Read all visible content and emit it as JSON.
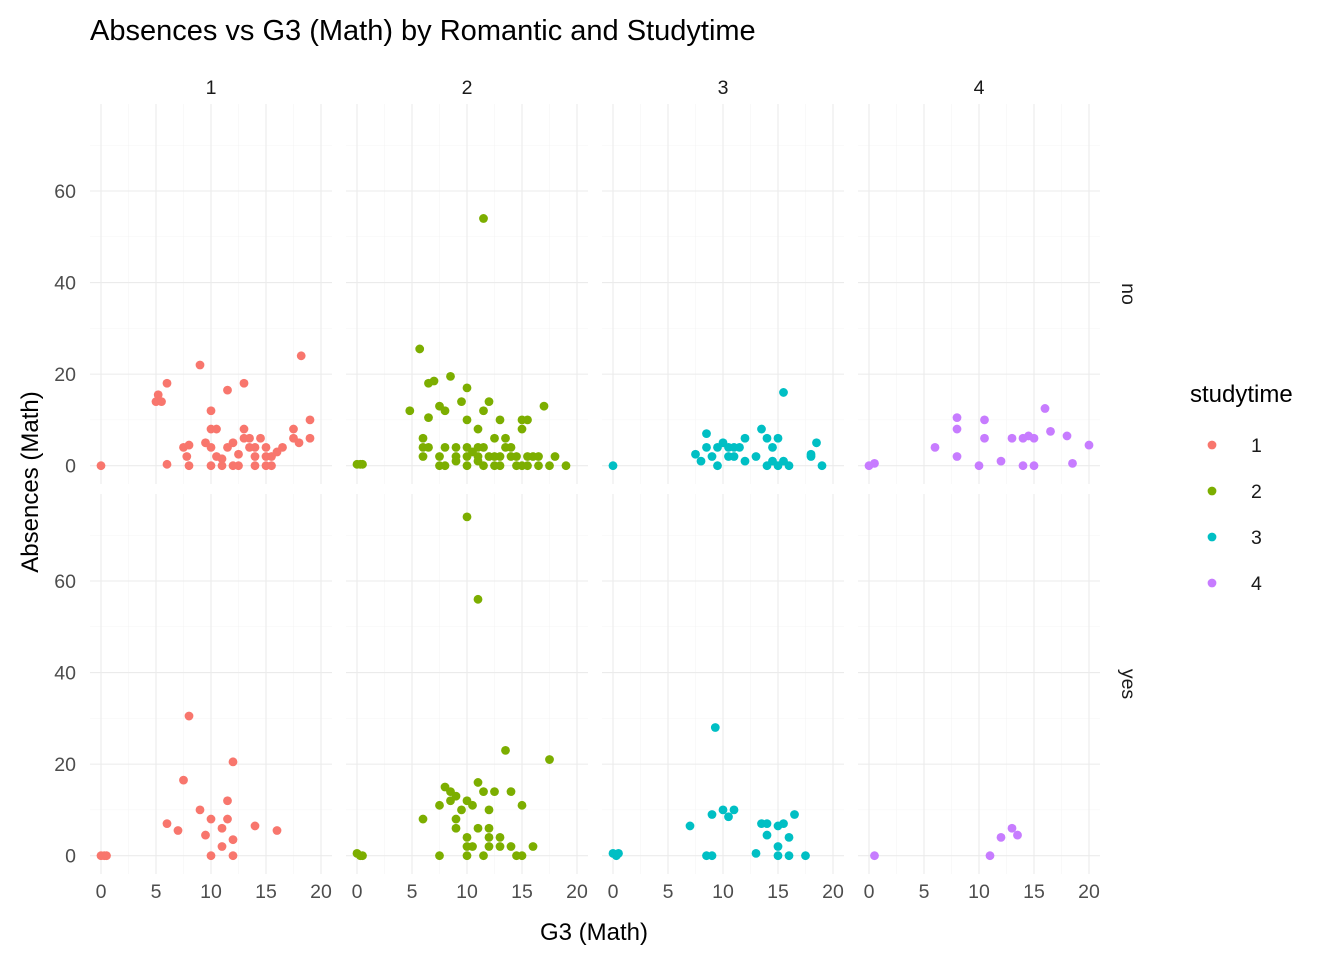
{
  "chart_data": {
    "type": "scatter",
    "title": "Absences vs G3 (Math) by Romantic and Studytime",
    "xlabel": "G3 (Math)",
    "ylabel": "Absences (Math)",
    "xlim": [
      -1,
      21
    ],
    "ylim": [
      -4,
      79
    ],
    "x_ticks": [
      0,
      5,
      10,
      15,
      20
    ],
    "y_ticks": [
      0,
      20,
      40,
      60
    ],
    "facet_cols": [
      "1",
      "2",
      "3",
      "4"
    ],
    "facet_rows": [
      "no",
      "yes"
    ],
    "grid": true,
    "legend": {
      "title": "studytime",
      "position": "right",
      "entries": [
        {
          "label": "1",
          "color": "#F8766D"
        },
        {
          "label": "2",
          "color": "#7CAE00"
        },
        {
          "label": "3",
          "color": "#00BFC4"
        },
        {
          "label": "4",
          "color": "#C77CFF"
        }
      ]
    },
    "panels": [
      {
        "row": "no",
        "col": "1",
        "studytime": "1",
        "points": [
          [
            0,
            0
          ],
          [
            5,
            14
          ],
          [
            5.2,
            15.5
          ],
          [
            5.5,
            14
          ],
          [
            6,
            0.3
          ],
          [
            6,
            18
          ],
          [
            7.5,
            4
          ],
          [
            7.8,
            2
          ],
          [
            8,
            0
          ],
          [
            8,
            4.5
          ],
          [
            9,
            22
          ],
          [
            9.5,
            5
          ],
          [
            10,
            0
          ],
          [
            10,
            4
          ],
          [
            10,
            8
          ],
          [
            10,
            12
          ],
          [
            10.5,
            2
          ],
          [
            10.5,
            8
          ],
          [
            11,
            0
          ],
          [
            11,
            1.5
          ],
          [
            11.5,
            4
          ],
          [
            11.5,
            16.5
          ],
          [
            12,
            0
          ],
          [
            12,
            5
          ],
          [
            12.5,
            0
          ],
          [
            12.5,
            2.5
          ],
          [
            13,
            6
          ],
          [
            13,
            8
          ],
          [
            13,
            18
          ],
          [
            13.5,
            4
          ],
          [
            13.5,
            6
          ],
          [
            14,
            0
          ],
          [
            14,
            2
          ],
          [
            14,
            4
          ],
          [
            14.5,
            6
          ],
          [
            15,
            0
          ],
          [
            15,
            2
          ],
          [
            15,
            4
          ],
          [
            15.5,
            0
          ],
          [
            15.5,
            2
          ],
          [
            16,
            3
          ],
          [
            16.5,
            4
          ],
          [
            17.5,
            6
          ],
          [
            17.5,
            8
          ],
          [
            18,
            5
          ],
          [
            18.2,
            24
          ],
          [
            19,
            6
          ],
          [
            19,
            10
          ]
        ]
      },
      {
        "row": "no",
        "col": "2",
        "studytime": "2",
        "points": [
          [
            0,
            0.3
          ],
          [
            0.3,
            0.3
          ],
          [
            0.5,
            0.3
          ],
          [
            4.8,
            12
          ],
          [
            5.7,
            25.5
          ],
          [
            6,
            2
          ],
          [
            6,
            4
          ],
          [
            6,
            6
          ],
          [
            6.5,
            4
          ],
          [
            6.5,
            10.5
          ],
          [
            6.5,
            18
          ],
          [
            7,
            18.5
          ],
          [
            7.5,
            0
          ],
          [
            7.5,
            2
          ],
          [
            7.5,
            13
          ],
          [
            8,
            0
          ],
          [
            8,
            4
          ],
          [
            8,
            12
          ],
          [
            8.5,
            19.5
          ],
          [
            9,
            1
          ],
          [
            9,
            2
          ],
          [
            9,
            4
          ],
          [
            9.5,
            14
          ],
          [
            10,
            0
          ],
          [
            10,
            2
          ],
          [
            10,
            4
          ],
          [
            10,
            10
          ],
          [
            10,
            17
          ],
          [
            10.5,
            3
          ],
          [
            11,
            1
          ],
          [
            11,
            2
          ],
          [
            11,
            4
          ],
          [
            11,
            8
          ],
          [
            11.5,
            0
          ],
          [
            11.5,
            4
          ],
          [
            11.5,
            12
          ],
          [
            11.5,
            54
          ],
          [
            12,
            2
          ],
          [
            12,
            14
          ],
          [
            12.5,
            0
          ],
          [
            12.5,
            2
          ],
          [
            12.5,
            6
          ],
          [
            13,
            0
          ],
          [
            13,
            2
          ],
          [
            13,
            10
          ],
          [
            13.5,
            4
          ],
          [
            13.5,
            6
          ],
          [
            14,
            2
          ],
          [
            14,
            4
          ],
          [
            14.5,
            0
          ],
          [
            14.5,
            2
          ],
          [
            15,
            0
          ],
          [
            15,
            8
          ],
          [
            15,
            10
          ],
          [
            15.5,
            0
          ],
          [
            15.5,
            2
          ],
          [
            15.5,
            10
          ],
          [
            16,
            2
          ],
          [
            16.5,
            0
          ],
          [
            16.5,
            2
          ],
          [
            17,
            13
          ],
          [
            17.5,
            0
          ],
          [
            18,
            2
          ],
          [
            19,
            0
          ]
        ]
      },
      {
        "row": "no",
        "col": "3",
        "studytime": "3",
        "points": [
          [
            0,
            0
          ],
          [
            7.5,
            2.5
          ],
          [
            8,
            1
          ],
          [
            8.5,
            7
          ],
          [
            8.5,
            4
          ],
          [
            9,
            2
          ],
          [
            9.5,
            0
          ],
          [
            9.5,
            4
          ],
          [
            10,
            5
          ],
          [
            10.5,
            2
          ],
          [
            10.5,
            4
          ],
          [
            11,
            2
          ],
          [
            11,
            4
          ],
          [
            11.5,
            4
          ],
          [
            12,
            1
          ],
          [
            12,
            6
          ],
          [
            13,
            2
          ],
          [
            13.5,
            8
          ],
          [
            14,
            0
          ],
          [
            14,
            6
          ],
          [
            14.5,
            1
          ],
          [
            14.5,
            4
          ],
          [
            15,
            0
          ],
          [
            15,
            6
          ],
          [
            15.5,
            1
          ],
          [
            15.5,
            16
          ],
          [
            16,
            0
          ],
          [
            18,
            2
          ],
          [
            18,
            2.5
          ],
          [
            18.5,
            5
          ],
          [
            19,
            0
          ]
        ]
      },
      {
        "row": "no",
        "col": "4",
        "studytime": "4",
        "points": [
          [
            0,
            0
          ],
          [
            0.5,
            0.5
          ],
          [
            6,
            4
          ],
          [
            8,
            2
          ],
          [
            8,
            8
          ],
          [
            8,
            10.5
          ],
          [
            10,
            0
          ],
          [
            10.5,
            6
          ],
          [
            10.5,
            10
          ],
          [
            12,
            1
          ],
          [
            13,
            6
          ],
          [
            14,
            0
          ],
          [
            14,
            6
          ],
          [
            14.5,
            6.5
          ],
          [
            15,
            0
          ],
          [
            15,
            6
          ],
          [
            16,
            12.5
          ],
          [
            16.5,
            7.5
          ],
          [
            18,
            6.5
          ],
          [
            18.5,
            0.5
          ],
          [
            20,
            4.5
          ]
        ]
      },
      {
        "row": "yes",
        "col": "1",
        "studytime": "1",
        "points": [
          [
            0,
            0
          ],
          [
            0.3,
            0
          ],
          [
            0.5,
            0
          ],
          [
            6,
            7
          ],
          [
            7,
            5.5
          ],
          [
            7.5,
            16.5
          ],
          [
            8,
            30.5
          ],
          [
            9,
            10
          ],
          [
            9.5,
            4.5
          ],
          [
            10,
            0
          ],
          [
            10,
            8
          ],
          [
            11,
            2
          ],
          [
            11,
            6
          ],
          [
            11.5,
            12
          ],
          [
            11.5,
            8
          ],
          [
            12,
            0
          ],
          [
            12,
            3.5
          ],
          [
            12,
            20.5
          ],
          [
            14,
            6.5
          ],
          [
            16,
            5.5
          ]
        ]
      },
      {
        "row": "yes",
        "col": "2",
        "studytime": "2",
        "points": [
          [
            0,
            0.5
          ],
          [
            0.3,
            0
          ],
          [
            0.5,
            0
          ],
          [
            6,
            8
          ],
          [
            7.5,
            0
          ],
          [
            7.5,
            11
          ],
          [
            8,
            15
          ],
          [
            8.5,
            12
          ],
          [
            8.5,
            14
          ],
          [
            9,
            6
          ],
          [
            9,
            8
          ],
          [
            9,
            13
          ],
          [
            9.5,
            10
          ],
          [
            10,
            0
          ],
          [
            10,
            2
          ],
          [
            10,
            4
          ],
          [
            10,
            12
          ],
          [
            10,
            74
          ],
          [
            10.5,
            2
          ],
          [
            10.5,
            11
          ],
          [
            11,
            6
          ],
          [
            11,
            16
          ],
          [
            11,
            56
          ],
          [
            11.5,
            0
          ],
          [
            11.5,
            14
          ],
          [
            12,
            2
          ],
          [
            12,
            4
          ],
          [
            12,
            6
          ],
          [
            12,
            10
          ],
          [
            12.5,
            14
          ],
          [
            13,
            2
          ],
          [
            13,
            4
          ],
          [
            13.5,
            23
          ],
          [
            14,
            2
          ],
          [
            14,
            14
          ],
          [
            14.5,
            0
          ],
          [
            15,
            0
          ],
          [
            15,
            11
          ],
          [
            16,
            2
          ],
          [
            17.5,
            21
          ]
        ]
      },
      {
        "row": "yes",
        "col": "3",
        "studytime": "3",
        "points": [
          [
            0,
            0.5
          ],
          [
            0.3,
            0
          ],
          [
            0.5,
            0.5
          ],
          [
            7,
            6.5
          ],
          [
            8.5,
            0
          ],
          [
            9,
            9
          ],
          [
            9,
            0
          ],
          [
            9.3,
            28
          ],
          [
            10,
            10
          ],
          [
            10.5,
            8.5
          ],
          [
            11,
            10
          ],
          [
            13,
            0.5
          ],
          [
            13.5,
            7
          ],
          [
            14,
            4.5
          ],
          [
            14,
            7
          ],
          [
            15,
            0
          ],
          [
            15,
            2
          ],
          [
            15,
            6.5
          ],
          [
            15.5,
            7
          ],
          [
            16,
            4
          ],
          [
            16,
            0
          ],
          [
            16.5,
            9
          ],
          [
            17.5,
            0
          ]
        ]
      },
      {
        "row": "yes",
        "col": "4",
        "studytime": "4",
        "points": [
          [
            0.5,
            0
          ],
          [
            11,
            0
          ],
          [
            12,
            4
          ],
          [
            13,
            6
          ],
          [
            13.5,
            4.5
          ]
        ]
      }
    ]
  }
}
